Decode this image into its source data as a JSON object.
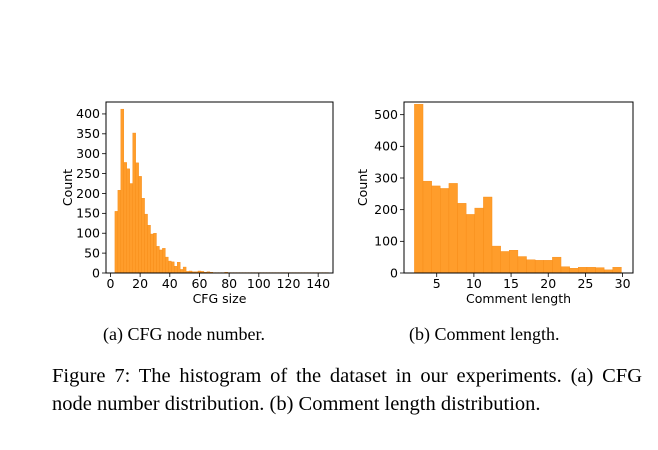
{
  "chart_data": [
    {
      "type": "bar",
      "subplot_caption": "(a) CFG node number.",
      "xlabel": "CFG size",
      "ylabel": "Count",
      "xlim": [
        -3,
        150
      ],
      "ylim": [
        0,
        430
      ],
      "xticks": [
        0,
        20,
        40,
        60,
        80,
        100,
        120,
        140
      ],
      "yticks": [
        0,
        50,
        100,
        150,
        200,
        250,
        300,
        350,
        400
      ],
      "bin_width": 2,
      "bin_starts": [
        3,
        5,
        7,
        9,
        11,
        13,
        15,
        17,
        19,
        21,
        23,
        25,
        27,
        29,
        31,
        33,
        35,
        37,
        39,
        41,
        43,
        45,
        47,
        49,
        51,
        53,
        55,
        57,
        59,
        61,
        63,
        65,
        67,
        69,
        71,
        73,
        75,
        77,
        79,
        81,
        83,
        85,
        87,
        89,
        91,
        93,
        95,
        97,
        99,
        101,
        103,
        105,
        107,
        109,
        111,
        113,
        115,
        117,
        119,
        121,
        123,
        125,
        127,
        129,
        131,
        133,
        135,
        137,
        139,
        141,
        143,
        145
      ],
      "values": [
        155,
        208,
        412,
        278,
        262,
        225,
        352,
        277,
        243,
        188,
        148,
        120,
        98,
        100,
        67,
        58,
        62,
        40,
        30,
        28,
        17,
        27,
        9,
        15,
        4,
        5,
        3,
        3,
        5,
        4,
        2,
        3,
        2,
        1,
        1,
        1,
        1,
        2,
        1,
        1,
        1,
        1,
        1,
        1,
        1,
        1,
        1,
        1,
        1,
        1,
        1,
        1,
        1,
        1,
        1,
        1,
        1,
        1,
        1,
        1,
        1,
        1,
        1,
        1,
        1,
        1,
        1,
        1,
        1,
        1,
        1,
        1
      ],
      "bar_color": "#ff9d2b",
      "bar_edge_color": "#f58a14"
    },
    {
      "type": "bar",
      "subplot_caption": "(b) Comment length.",
      "xlabel": "Comment length",
      "ylabel": "Count",
      "xlim": [
        0.6,
        31.4
      ],
      "ylim": [
        0,
        540
      ],
      "xticks": [
        5,
        10,
        15,
        20,
        25,
        30
      ],
      "yticks": [
        0,
        100,
        200,
        300,
        400,
        500
      ],
      "bin_width": 1.16,
      "bin_starts": [
        2,
        3.16,
        4.32,
        5.48,
        6.64,
        7.8,
        8.96,
        10.12,
        11.28,
        12.44,
        13.6,
        14.76,
        15.92,
        17.08,
        18.24,
        19.4,
        20.56,
        21.72,
        22.88,
        24.04,
        25.2,
        26.36,
        27.52,
        28.68
      ],
      "values": [
        533,
        290,
        275,
        267,
        283,
        220,
        185,
        205,
        240,
        85,
        68,
        72,
        52,
        42,
        40,
        40,
        50,
        20,
        15,
        18,
        18,
        17,
        10,
        18
      ],
      "bar_color": "#ff9d2b",
      "bar_edge_color": "#f58a14"
    }
  ],
  "figure_caption": "Figure 7: The histogram of the dataset in our experiments. (a) CFG node number distribution. (b) Comment length distribution."
}
